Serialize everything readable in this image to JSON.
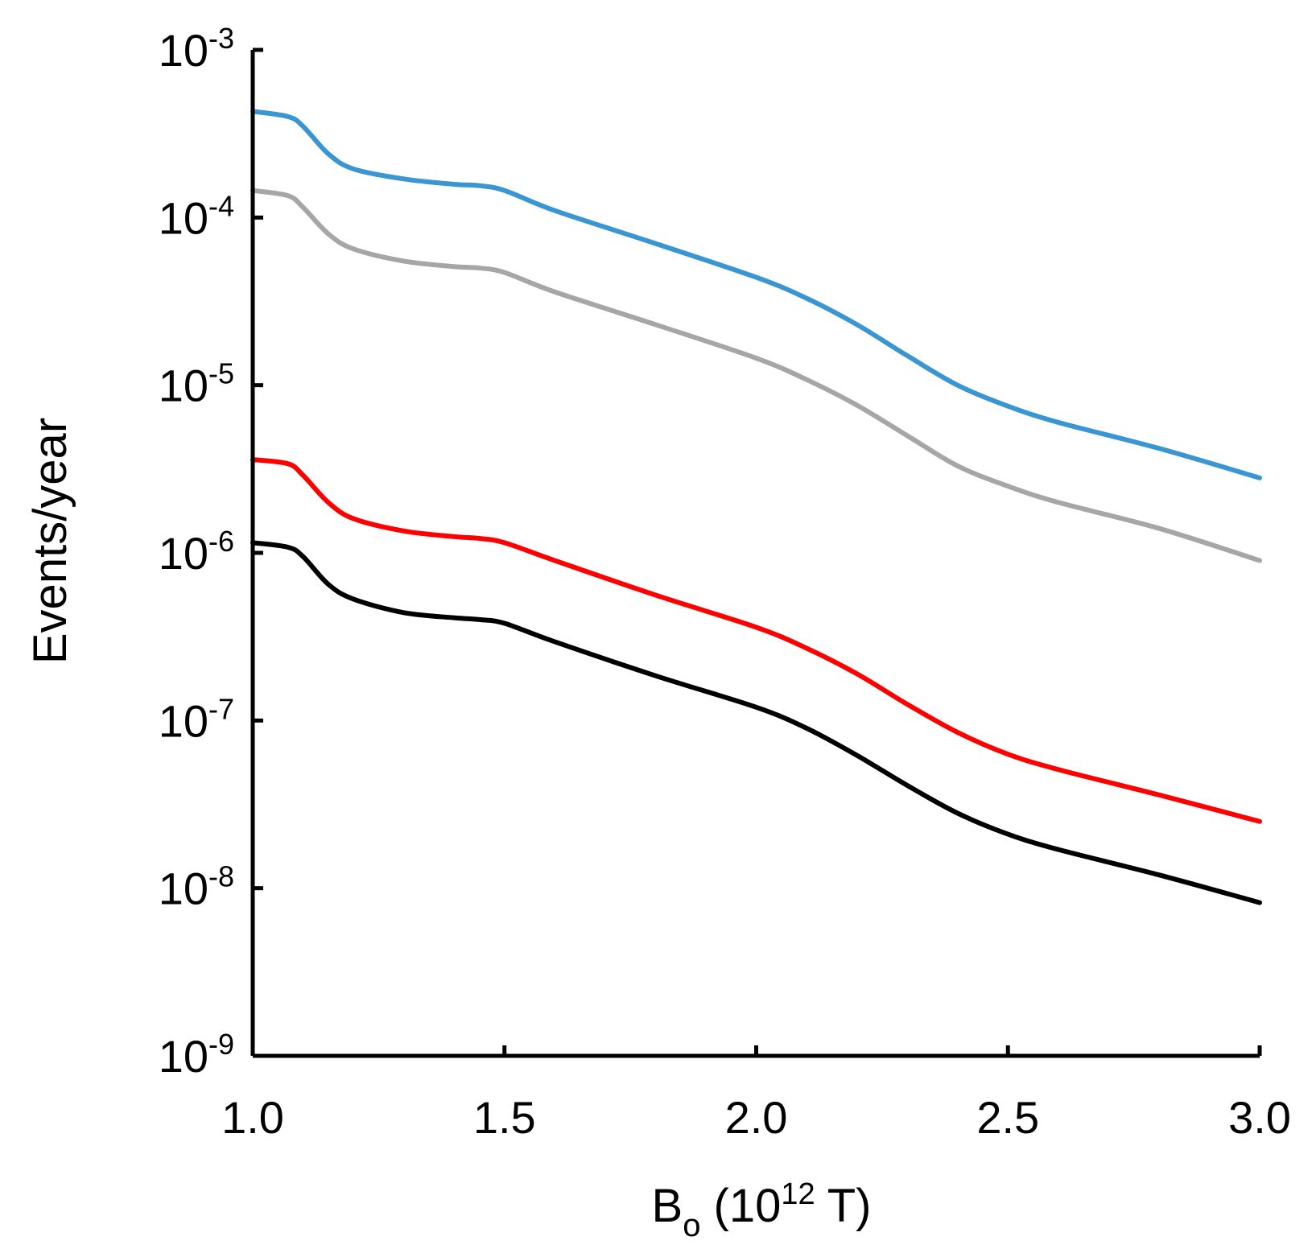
{
  "chart_data": {
    "type": "line",
    "title": "",
    "xlabel": {
      "base": "B",
      "subscript": "o",
      "prefix": " (10",
      "superscript": "12",
      "suffix": " T)"
    },
    "ylabel": "Events/year",
    "yscale": "log",
    "xlim": [
      1.0,
      3.0
    ],
    "ylim": [
      1e-09,
      0.001
    ],
    "x_ticks": [
      "1.0",
      "1.5",
      "2.0",
      "2.5",
      "3.0"
    ],
    "y_ticks": [
      {
        "base": "10",
        "exp": "-9",
        "value": 1e-09
      },
      {
        "base": "10",
        "exp": "-8",
        "value": 1e-08
      },
      {
        "base": "10",
        "exp": "-7",
        "value": 1e-07
      },
      {
        "base": "10",
        "exp": "-6",
        "value": 1e-06
      },
      {
        "base": "10",
        "exp": "-5",
        "value": 1e-05
      },
      {
        "base": "10",
        "exp": "-4",
        "value": 0.0001
      },
      {
        "base": "10",
        "exp": "-3",
        "value": 0.001
      }
    ],
    "grid": false,
    "legend": "none",
    "series": [
      {
        "name": "blue",
        "color": "#3A96D2",
        "x": [
          1.0,
          1.07,
          1.1,
          1.15,
          1.2,
          1.3,
          1.4,
          1.45,
          1.5,
          1.6,
          1.8,
          2.0,
          2.1,
          2.2,
          2.3,
          2.4,
          2.5,
          2.6,
          2.8,
          3.0
        ],
        "y": [
          0.00043,
          0.0004,
          0.00035,
          0.00024,
          0.000195,
          0.00017,
          0.000158,
          0.000155,
          0.000145,
          0.00011,
          7e-05,
          4.4e-05,
          3.3e-05,
          2.3e-05,
          1.5e-05,
          1e-05,
          7.5e-06,
          6e-06,
          4.2e-06,
          2.8e-06
        ]
      },
      {
        "name": "gray",
        "color": "#A6A6A6",
        "x": [
          1.0,
          1.07,
          1.1,
          1.15,
          1.2,
          1.3,
          1.4,
          1.45,
          1.5,
          1.6,
          1.8,
          2.0,
          2.1,
          2.2,
          2.3,
          2.4,
          2.5,
          2.6,
          2.8,
          3.0
        ],
        "y": [
          0.000145,
          0.000135,
          0.000115,
          8e-05,
          6.5e-05,
          5.5e-05,
          5.1e-05,
          5e-05,
          4.7e-05,
          3.6e-05,
          2.3e-05,
          1.45e-05,
          1.08e-05,
          7.6e-06,
          5e-06,
          3.3e-06,
          2.5e-06,
          2e-06,
          1.4e-06,
          9e-07
        ]
      },
      {
        "name": "red",
        "color": "#FF0000",
        "x": [
          1.0,
          1.07,
          1.1,
          1.15,
          1.2,
          1.3,
          1.4,
          1.45,
          1.5,
          1.6,
          1.8,
          2.0,
          2.1,
          2.2,
          2.3,
          2.4,
          2.5,
          2.6,
          2.8,
          3.0
        ],
        "y": [
          3.6e-06,
          3.4e-06,
          2.9e-06,
          2e-06,
          1.6e-06,
          1.35e-06,
          1.25e-06,
          1.22e-06,
          1.15e-06,
          9e-07,
          5.6e-07,
          3.6e-07,
          2.7e-07,
          1.9e-07,
          1.25e-07,
          8.5e-08,
          6.3e-08,
          5.1e-08,
          3.6e-08,
          2.5e-08
        ]
      },
      {
        "name": "black",
        "color": "#000000",
        "x": [
          1.0,
          1.07,
          1.1,
          1.15,
          1.2,
          1.3,
          1.4,
          1.45,
          1.5,
          1.6,
          1.8,
          2.0,
          2.1,
          2.2,
          2.3,
          2.4,
          2.5,
          2.6,
          2.8,
          3.0
        ],
        "y": [
          1.15e-06,
          1.08e-06,
          9.5e-07,
          6.5e-07,
          5.3e-07,
          4.4e-07,
          4.1e-07,
          4e-07,
          3.8e-07,
          2.95e-07,
          1.85e-07,
          1.2e-07,
          9e-08,
          6.2e-08,
          4.1e-08,
          2.8e-08,
          2.1e-08,
          1.7e-08,
          1.2e-08,
          8.2e-09
        ]
      }
    ]
  }
}
